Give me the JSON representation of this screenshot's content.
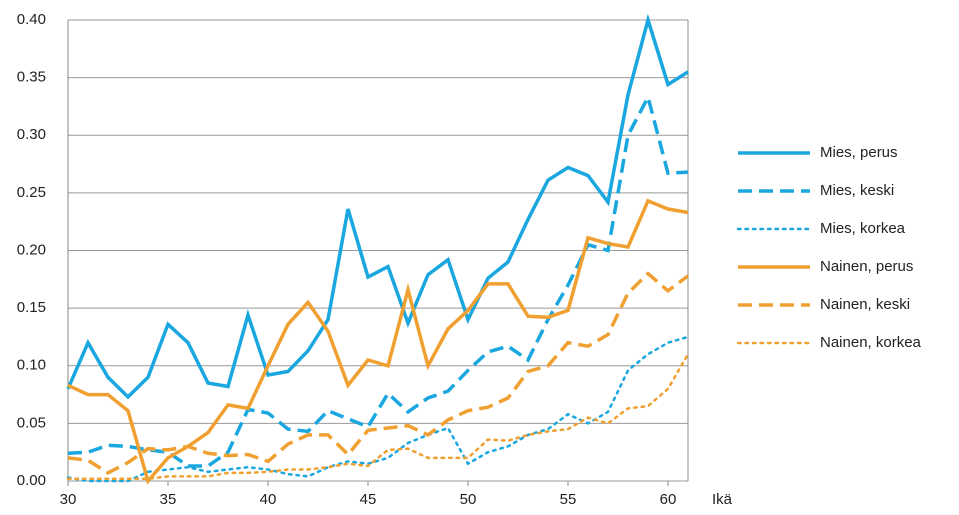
{
  "chart_data": {
    "type": "line",
    "x": [
      30,
      31,
      32,
      33,
      34,
      35,
      36,
      37,
      38,
      39,
      40,
      41,
      42,
      43,
      44,
      45,
      46,
      47,
      48,
      49,
      50,
      51,
      52,
      53,
      54,
      55,
      56,
      57,
      58,
      59,
      60,
      61
    ],
    "xlim": [
      30,
      61
    ],
    "xticks": [
      30,
      35,
      40,
      45,
      50,
      55,
      60
    ],
    "x_label": "Ikä",
    "ylim": [
      0,
      0.4
    ],
    "yticks": [
      {
        "value": 0,
        "label": "0.00"
      },
      {
        "value": 0.05,
        "label": "0.05"
      },
      {
        "value": 0.1,
        "label": "0.10"
      },
      {
        "value": 0.15,
        "label": "0.15"
      },
      {
        "value": 0.2,
        "label": "0.20"
      },
      {
        "value": 0.25,
        "label": "0.25"
      },
      {
        "value": 0.3,
        "label": "0.30"
      },
      {
        "value": 0.35,
        "label": "0.35"
      },
      {
        "value": 0.4,
        "label": "0.40"
      }
    ],
    "grid": true,
    "legend": "right",
    "series": [
      {
        "name": "Mies, perus",
        "color": "#1aa7e0",
        "dash": "solid",
        "values": [
          0.08,
          0.12,
          0.09,
          0.073,
          0.09,
          0.136,
          0.12,
          0.085,
          0.082,
          0.144,
          0.092,
          0.095,
          0.113,
          0.14,
          0.236,
          0.177,
          0.186,
          0.137,
          0.179,
          0.192,
          0.14,
          0.176,
          0.19,
          0.227,
          0.261,
          0.272,
          0.265,
          0.242,
          0.335,
          0.4,
          0.344,
          0.355
        ]
      },
      {
        "name": "Mies, keski",
        "color": "#1aa7e0",
        "dash": "dashed",
        "values": [
          0.024,
          0.025,
          0.031,
          0.03,
          0.027,
          0.025,
          0.013,
          0.013,
          0.025,
          0.062,
          0.059,
          0.045,
          0.043,
          0.061,
          0.054,
          0.047,
          0.076,
          0.06,
          0.072,
          0.078,
          0.096,
          0.112,
          0.117,
          0.105,
          0.14,
          0.17,
          0.205,
          0.2,
          0.3,
          0.333,
          0.267,
          0.268
        ]
      },
      {
        "name": "Mies, korkea",
        "color": "#1aa7e0",
        "dash": "dotted",
        "values": [
          0.003,
          0,
          0,
          0,
          0.008,
          0.01,
          0.012,
          0.008,
          0.01,
          0.012,
          0.01,
          0.006,
          0.004,
          0.012,
          0.017,
          0.015,
          0.02,
          0.033,
          0.04,
          0.046,
          0.015,
          0.025,
          0.03,
          0.04,
          0.045,
          0.058,
          0.05,
          0.06,
          0.096,
          0.11,
          0.12,
          0.125
        ]
      },
      {
        "name": "Nainen, perus",
        "color": "#f0a030",
        "dash": "solid",
        "values": [
          0.083,
          0.075,
          0.075,
          0.061,
          0,
          0.02,
          0.03,
          0.042,
          0.066,
          0.063,
          0.1,
          0.136,
          0.155,
          0.13,
          0.083,
          0.105,
          0.1,
          0.166,
          0.1,
          0.132,
          0.148,
          0.171,
          0.171,
          0.143,
          0.142,
          0.148,
          0.211,
          0.206,
          0.203,
          0.243,
          0.236,
          0.233
        ]
      },
      {
        "name": "Nainen, keski",
        "color": "#f0a030",
        "dash": "dashed",
        "values": [
          0.02,
          0.018,
          0.007,
          0.016,
          0.028,
          0.027,
          0.03,
          0.024,
          0.022,
          0.023,
          0.017,
          0.032,
          0.04,
          0.04,
          0.023,
          0.044,
          0.046,
          0.048,
          0.04,
          0.053,
          0.061,
          0.064,
          0.072,
          0.095,
          0.1,
          0.12,
          0.117,
          0.127,
          0.163,
          0.18,
          0.165,
          0.178
        ]
      },
      {
        "name": "Nainen, korkea",
        "color": "#f0a030",
        "dash": "dotted",
        "values": [
          0.002,
          0.002,
          0.002,
          0.002,
          0.002,
          0.004,
          0.004,
          0.004,
          0.007,
          0.007,
          0.008,
          0.01,
          0.01,
          0.012,
          0.015,
          0.013,
          0.027,
          0.028,
          0.02,
          0.02,
          0.02,
          0.036,
          0.035,
          0.04,
          0.043,
          0.045,
          0.055,
          0.05,
          0.063,
          0.065,
          0.08,
          0.11
        ]
      }
    ]
  }
}
